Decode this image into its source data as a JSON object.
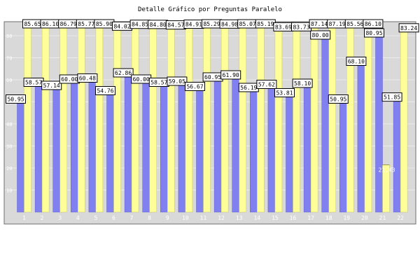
{
  "chart_data": {
    "type": "bar",
    "title": "Detalle Gráfico por Preguntas Paralelo",
    "xlabel": "",
    "ylabel": "",
    "ylim": [
      0,
      96
    ],
    "yticks": [
      10,
      20,
      30,
      40,
      50,
      60,
      70,
      80
    ],
    "grid": true,
    "legend": "none",
    "categories": [
      "1",
      "2",
      "3",
      "4",
      "5",
      "6",
      "7",
      "8",
      "9",
      "10",
      "11",
      "12",
      "13",
      "14",
      "15",
      "16",
      "17",
      "18",
      "19",
      "20",
      "21",
      "22"
    ],
    "series": [
      {
        "color": "#8080f0",
        "values": [
          50.95,
          58.57,
          57.14,
          60.0,
          60.48,
          54.76,
          62.86,
          60.0,
          58.57,
          59.05,
          56.67,
          60.95,
          61.9,
          56.19,
          57.62,
          53.81,
          58.1,
          80.0,
          50.95,
          68.1,
          80.95,
          51.85
        ],
        "labels": [
          "50.95",
          "58.57",
          "57.14",
          "60.00",
          "60.48",
          "54.76",
          "62.86",
          "60.00",
          "58.57",
          "59.05",
          "56.67",
          "60.95",
          "61.90",
          "56.19",
          "57.62",
          "53.81",
          "58.10",
          "80.00",
          "50.95",
          "68.10",
          "80.95",
          "51.85"
        ]
      },
      {
        "color": "#ffff99",
        "values": [
          85.65,
          86.1,
          86.79,
          85.77,
          85.9,
          84.02,
          84.85,
          84.8,
          84.57,
          84.91,
          85.29,
          84.98,
          85.07,
          85.19,
          83.69,
          83.73,
          87.14,
          87.19,
          85.56,
          86.1,
          21.43,
          83.24
        ],
        "labels": [
          "85.65",
          "86.10",
          "86.79",
          "85.77",
          "85.90",
          "84.02",
          "84.85",
          "84.80",
          "84.57",
          "84.91",
          "85.29",
          "84.98",
          "85.07",
          "85.19",
          "83.69",
          "83.73",
          "87.14",
          "87.19",
          "85.56",
          "86.10",
          "21.43",
          "83.24"
        ]
      }
    ]
  }
}
